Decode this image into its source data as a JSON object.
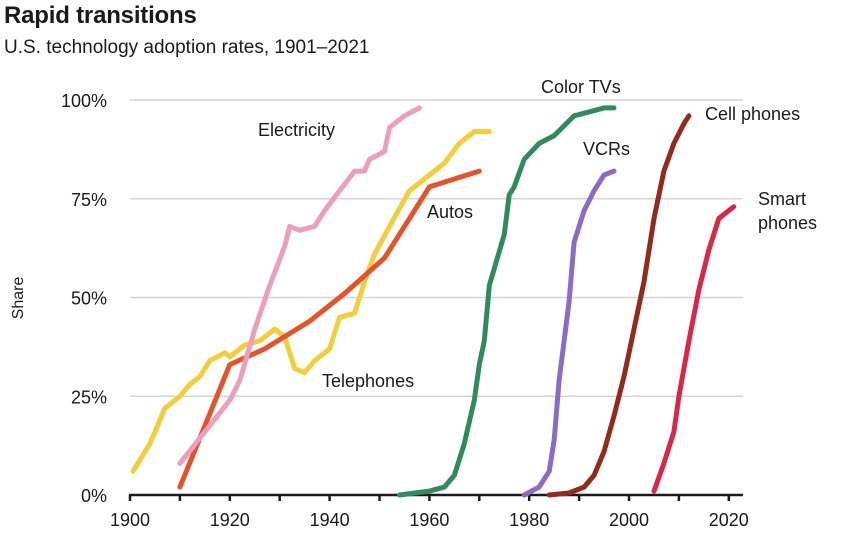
{
  "chart_data": {
    "type": "line",
    "title": "Rapid transitions",
    "subtitle": "U.S. technology adoption rates, 1901–2021",
    "xlabel": "",
    "ylabel": "Share",
    "xlim": [
      1900,
      2023
    ],
    "ylim": [
      0,
      100
    ],
    "grid": true,
    "legend": "inline labels",
    "x_ticks": [
      1900,
      1920,
      1940,
      1960,
      1980,
      2000,
      2020
    ],
    "x_tick_labels": [
      "1900",
      "1920",
      "1940",
      "1960",
      "1980",
      "2000",
      "2020"
    ],
    "y_ticks": [
      0,
      25,
      50,
      75,
      100
    ],
    "y_tick_labels": [
      "0%",
      "25%",
      "50%",
      "75%",
      "100%"
    ],
    "series": [
      {
        "name": "Telephones",
        "label_lines": [
          "Telephones"
        ],
        "color": "#f2cd3c",
        "x": [
          1900.6,
          1904,
          1907,
          1910,
          1912,
          1914,
          1916,
          1919,
          1920,
          1923,
          1926,
          1929,
          1931,
          1933,
          1935,
          1937,
          1940,
          1942,
          1945,
          1947,
          1949,
          1952,
          1956,
          1959,
          1963,
          1966,
          1969,
          1972
        ],
        "y": [
          6,
          13,
          22,
          25,
          28,
          30,
          34,
          36,
          35,
          38,
          39,
          42,
          40,
          32,
          31,
          34,
          37,
          45,
          46,
          54,
          61,
          68,
          77,
          80,
          84,
          89,
          92,
          92
        ]
      },
      {
        "name": "Autos",
        "label_lines": [
          "Autos"
        ],
        "color": "#e4532a",
        "x": [
          1910,
          1920,
          1927,
          1936,
          1943,
          1951,
          1960,
          1970
        ],
        "y": [
          2,
          33,
          37,
          44,
          51,
          60,
          78,
          82
        ]
      },
      {
        "name": "Electricity",
        "label_lines": [
          "Electricity"
        ],
        "color": "#eb9fba",
        "x": [
          1910,
          1920,
          1922,
          1925,
          1928,
          1931,
          1932,
          1934,
          1937,
          1939,
          1942,
          1945,
          1947,
          1948,
          1951,
          1952,
          1955,
          1958
        ],
        "y": [
          8,
          24,
          29,
          42,
          53,
          63,
          68,
          67,
          68,
          72,
          77,
          82,
          82,
          85,
          87,
          93,
          96,
          98
        ]
      },
      {
        "name": "Color TVs",
        "label_lines": [
          "Color TVs"
        ],
        "color": "#2f8a5e",
        "x": [
          1954,
          1960,
          1963,
          1965,
          1967,
          1969,
          1970,
          1971,
          1972,
          1975,
          1976,
          1977,
          1979,
          1982,
          1985,
          1989,
          1992,
          1995,
          1997
        ],
        "y": [
          0,
          1,
          2,
          5,
          13,
          24,
          33,
          39,
          53,
          66,
          76,
          78,
          85,
          89,
          91,
          96,
          97,
          98,
          98
        ]
      },
      {
        "name": "VCRs",
        "label_lines": [
          "VCRs"
        ],
        "color": "#8a6cc4",
        "x": [
          1979,
          1982,
          1984,
          1985,
          1986,
          1988,
          1989,
          1991,
          1993,
          1995,
          1997
        ],
        "y": [
          0,
          2,
          6,
          14,
          29,
          49,
          64,
          72,
          77,
          81,
          82
        ]
      },
      {
        "name": "Cell phones",
        "label_lines": [
          "Cell phones"
        ],
        "color": "#922b1c",
        "x": [
          1984,
          1988,
          1991,
          1993,
          1995,
          1997,
          1999,
          2001,
          2003,
          2005,
          2007,
          2009,
          2011,
          2012
        ],
        "y": [
          0,
          0.5,
          2,
          5,
          11,
          20,
          30,
          42,
          54,
          70,
          82,
          89,
          94,
          96
        ]
      },
      {
        "name": "Smart phones",
        "label_lines": [
          "Smart",
          "phones"
        ],
        "color": "#d9274a",
        "x": [
          2005,
          2007,
          2009,
          2010,
          2012,
          2014,
          2016,
          2018,
          2020,
          2021
        ],
        "y": [
          1,
          8,
          16,
          25,
          39,
          52,
          62,
          70,
          72,
          73
        ]
      }
    ]
  },
  "colors": {
    "grid": "#d4d4d4",
    "axis": "#1a1a1a"
  }
}
